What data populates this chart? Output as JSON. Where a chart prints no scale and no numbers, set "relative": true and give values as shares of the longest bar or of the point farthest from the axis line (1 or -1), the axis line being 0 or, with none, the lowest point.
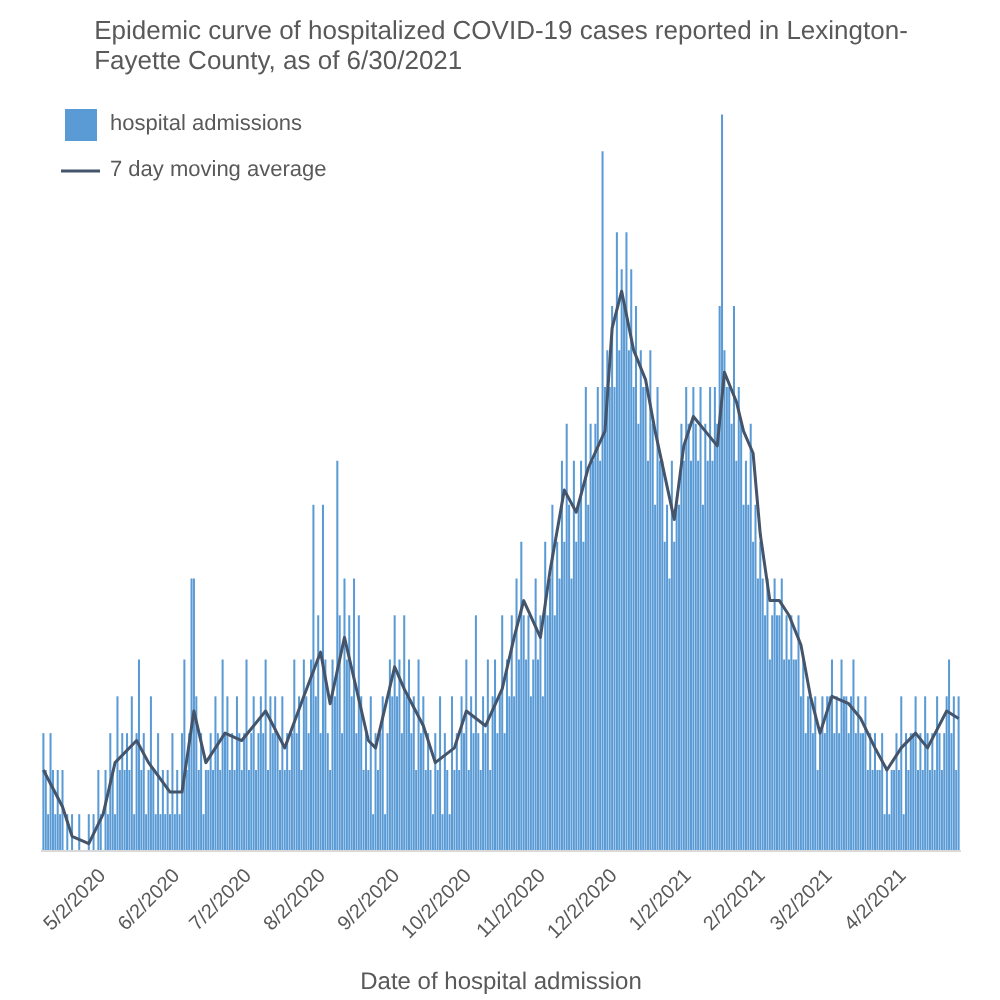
{
  "chart_data": {
    "type": "bar",
    "title": "Epidemic curve of hospitalized COVID-19 cases reported in Lexington-Fayette County, as of 6/30/2021",
    "xlabel": "Date of hospital admission",
    "relative": true,
    "legend": "top left",
    "xlim": [
      "2020-04-06",
      "2021-04-26"
    ],
    "xticks": [
      {
        "value": "2020-05-02",
        "label": "5/2/2020"
      },
      {
        "value": "2020-06-02",
        "label": "6/2/2020"
      },
      {
        "value": "2020-07-02",
        "label": "7/2/2020"
      },
      {
        "value": "2020-08-02",
        "label": "8/2/2020"
      },
      {
        "value": "2020-09-02",
        "label": "9/2/2020"
      },
      {
        "value": "2020-10-02",
        "label": "10/2/2020"
      },
      {
        "value": "2020-11-02",
        "label": "11/2/2020"
      },
      {
        "value": "2020-12-02",
        "label": "12/2/2020"
      },
      {
        "value": "2021-01-02",
        "label": "1/2/2021"
      },
      {
        "value": "2021-02-02",
        "label": "2/2/2021"
      },
      {
        "value": "2021-03-02",
        "label": "3/2/2021"
      },
      {
        "value": "2021-04-02",
        "label": "4/2/2021"
      }
    ],
    "series": [
      {
        "name": "hospital admissions",
        "color": "#5b9bd5",
        "x": [
          "2020-04-07",
          "2020-04-08",
          "2020-04-09",
          "2020-04-10",
          "2020-04-11",
          "2020-04-12",
          "2020-04-13",
          "2020-04-14",
          "2020-04-15",
          "2020-04-16",
          "2020-04-17",
          "2020-04-18",
          "2020-04-19",
          "2020-04-20",
          "2020-04-21",
          "2020-04-22",
          "2020-04-23",
          "2020-04-24",
          "2020-04-25",
          "2020-04-26",
          "2020-04-27",
          "2020-04-28",
          "2020-04-29",
          "2020-04-30",
          "2020-05-01",
          "2020-05-02",
          "2020-05-03",
          "2020-05-04",
          "2020-05-05",
          "2020-05-06",
          "2020-05-07",
          "2020-05-08",
          "2020-05-09",
          "2020-05-10",
          "2020-05-11",
          "2020-05-12",
          "2020-05-13",
          "2020-05-14",
          "2020-05-15",
          "2020-05-16",
          "2020-05-17",
          "2020-05-18",
          "2020-05-19",
          "2020-05-20",
          "2020-05-21",
          "2020-05-22",
          "2020-05-23",
          "2020-05-24",
          "2020-05-25",
          "2020-05-26",
          "2020-05-27",
          "2020-05-28",
          "2020-05-29",
          "2020-05-30",
          "2020-05-31",
          "2020-06-01",
          "2020-06-02",
          "2020-06-03",
          "2020-06-04",
          "2020-06-05",
          "2020-06-06",
          "2020-06-07",
          "2020-06-08",
          "2020-06-09",
          "2020-06-10",
          "2020-06-11",
          "2020-06-12",
          "2020-06-13",
          "2020-06-14",
          "2020-06-15",
          "2020-06-16",
          "2020-06-17",
          "2020-06-18",
          "2020-06-19",
          "2020-06-20",
          "2020-06-21",
          "2020-06-22",
          "2020-06-23",
          "2020-06-24",
          "2020-06-25",
          "2020-06-26",
          "2020-06-27",
          "2020-06-28",
          "2020-06-29",
          "2020-06-30",
          "2020-07-01",
          "2020-07-02",
          "2020-07-03",
          "2020-07-04",
          "2020-07-05",
          "2020-07-06",
          "2020-07-07",
          "2020-07-08",
          "2020-07-09",
          "2020-07-10",
          "2020-07-11",
          "2020-07-12",
          "2020-07-13",
          "2020-07-14",
          "2020-07-15",
          "2020-07-16",
          "2020-07-17",
          "2020-07-18",
          "2020-07-19",
          "2020-07-20",
          "2020-07-21",
          "2020-07-22",
          "2020-07-23",
          "2020-07-24",
          "2020-07-25",
          "2020-07-26",
          "2020-07-27",
          "2020-07-28",
          "2020-07-29",
          "2020-07-30",
          "2020-07-31",
          "2020-08-01",
          "2020-08-02",
          "2020-08-03",
          "2020-08-04",
          "2020-08-05",
          "2020-08-06",
          "2020-08-07",
          "2020-08-08",
          "2020-08-09",
          "2020-08-10",
          "2020-08-11",
          "2020-08-12",
          "2020-08-13",
          "2020-08-14",
          "2020-08-15",
          "2020-08-16",
          "2020-08-17",
          "2020-08-18",
          "2020-08-19",
          "2020-08-20",
          "2020-08-21",
          "2020-08-22",
          "2020-08-23",
          "2020-08-24",
          "2020-08-25",
          "2020-08-26",
          "2020-08-27",
          "2020-08-28",
          "2020-08-29",
          "2020-08-30",
          "2020-08-31",
          "2020-09-01",
          "2020-09-02",
          "2020-09-03",
          "2020-09-04",
          "2020-09-05",
          "2020-09-06",
          "2020-09-07",
          "2020-09-08",
          "2020-09-09",
          "2020-09-10",
          "2020-09-11",
          "2020-09-12",
          "2020-09-13",
          "2020-09-14",
          "2020-09-15",
          "2020-09-16",
          "2020-09-17",
          "2020-09-18",
          "2020-09-19",
          "2020-09-20",
          "2020-09-21",
          "2020-09-22",
          "2020-09-23",
          "2020-09-24",
          "2020-09-25",
          "2020-09-26",
          "2020-09-27",
          "2020-09-28",
          "2020-09-29",
          "2020-09-30",
          "2020-10-01",
          "2020-10-02",
          "2020-10-03",
          "2020-10-04",
          "2020-10-05",
          "2020-10-06",
          "2020-10-07",
          "2020-10-08",
          "2020-10-09",
          "2020-10-10",
          "2020-10-11",
          "2020-10-12",
          "2020-10-13",
          "2020-10-14",
          "2020-10-15",
          "2020-10-16",
          "2020-10-17",
          "2020-10-18",
          "2020-10-19",
          "2020-10-20",
          "2020-10-21",
          "2020-10-22",
          "2020-10-23",
          "2020-10-24",
          "2020-10-25",
          "2020-10-26",
          "2020-10-27",
          "2020-10-28",
          "2020-10-29",
          "2020-10-30",
          "2020-10-31",
          "2020-11-01",
          "2020-11-02",
          "2020-11-03",
          "2020-11-04",
          "2020-11-05",
          "2020-11-06",
          "2020-11-07",
          "2020-11-08",
          "2020-11-09",
          "2020-11-10",
          "2020-11-11",
          "2020-11-12",
          "2020-11-13",
          "2020-11-14",
          "2020-11-15",
          "2020-11-16",
          "2020-11-17",
          "2020-11-18",
          "2020-11-19",
          "2020-11-20",
          "2020-11-21",
          "2020-11-22",
          "2020-11-23",
          "2020-11-24",
          "2020-11-25",
          "2020-11-26",
          "2020-11-27",
          "2020-11-28",
          "2020-11-29",
          "2020-11-30",
          "2020-12-01",
          "2020-12-02",
          "2020-12-03",
          "2020-12-04",
          "2020-12-05",
          "2020-12-06",
          "2020-12-07",
          "2020-12-08",
          "2020-12-09",
          "2020-12-10",
          "2020-12-11",
          "2020-12-12",
          "2020-12-13",
          "2020-12-14",
          "2020-12-15",
          "2020-12-16",
          "2020-12-17",
          "2020-12-18",
          "2020-12-19",
          "2020-12-20",
          "2020-12-21",
          "2020-12-22",
          "2020-12-23",
          "2020-12-24",
          "2020-12-25",
          "2020-12-26",
          "2020-12-27",
          "2020-12-28",
          "2020-12-29",
          "2020-12-30",
          "2020-12-31",
          "2021-01-01",
          "2021-01-02",
          "2021-01-03",
          "2021-01-04",
          "2021-01-05",
          "2021-01-06",
          "2021-01-07",
          "2021-01-08",
          "2021-01-09",
          "2021-01-10",
          "2021-01-11",
          "2021-01-12",
          "2021-01-13",
          "2021-01-14",
          "2021-01-15",
          "2021-01-16",
          "2021-01-17",
          "2021-01-18",
          "2021-01-19",
          "2021-01-20",
          "2021-01-21",
          "2021-01-22",
          "2021-01-23",
          "2021-01-24",
          "2021-01-25",
          "2021-01-26",
          "2021-01-27",
          "2021-01-28",
          "2021-01-29",
          "2021-01-30",
          "2021-01-31",
          "2021-02-01",
          "2021-02-02",
          "2021-02-03",
          "2021-02-04",
          "2021-02-05",
          "2021-02-06",
          "2021-02-07",
          "2021-02-08",
          "2021-02-09",
          "2021-02-10",
          "2021-02-11",
          "2021-02-12",
          "2021-02-13",
          "2021-02-14",
          "2021-02-15",
          "2021-02-16",
          "2021-02-17",
          "2021-02-18",
          "2021-02-19",
          "2021-02-20",
          "2021-02-21",
          "2021-02-22",
          "2021-02-23",
          "2021-02-24",
          "2021-02-25",
          "2021-02-26",
          "2021-02-27",
          "2021-02-28",
          "2021-03-01",
          "2021-03-02",
          "2021-03-03",
          "2021-03-04",
          "2021-03-05",
          "2021-03-06",
          "2021-03-07",
          "2021-03-08",
          "2021-03-09",
          "2021-03-10",
          "2021-03-11",
          "2021-03-12",
          "2021-03-13",
          "2021-03-14",
          "2021-03-15",
          "2021-03-16",
          "2021-03-17",
          "2021-03-18",
          "2021-03-19",
          "2021-03-20",
          "2021-03-21",
          "2021-03-22",
          "2021-03-23",
          "2021-03-24",
          "2021-03-25",
          "2021-03-26",
          "2021-03-27",
          "2021-03-28",
          "2021-03-29",
          "2021-03-30",
          "2021-03-31",
          "2021-04-01",
          "2021-04-02",
          "2021-04-03",
          "2021-04-04",
          "2021-04-05",
          "2021-04-06",
          "2021-04-07",
          "2021-04-08",
          "2021-04-09",
          "2021-04-10",
          "2021-04-11",
          "2021-04-12",
          "2021-04-13",
          "2021-04-14",
          "2021-04-15",
          "2021-04-16",
          "2021-04-17",
          "2021-04-18",
          "2021-04-19",
          "2021-04-20",
          "2021-04-21",
          "2021-04-22",
          "2021-04-23",
          "2021-04-24",
          "2021-04-25"
        ],
        "values": [
          0.16,
          0.11,
          0.05,
          0.16,
          0.11,
          0.05,
          0.11,
          0.05,
          0.11,
          0,
          0.05,
          0,
          0.05,
          0,
          0,
          0.05,
          0,
          0,
          0,
          0.05,
          0,
          0.05,
          0,
          0.11,
          0.05,
          0,
          0.11,
          0.05,
          0.16,
          0.11,
          0.05,
          0.21,
          0.11,
          0.16,
          0.11,
          0.16,
          0.11,
          0.21,
          0.05,
          0.16,
          0.26,
          0.11,
          0.16,
          0.05,
          0.11,
          0.21,
          0.11,
          0.05,
          0.16,
          0.05,
          0.11,
          0.05,
          0.11,
          0.05,
          0.16,
          0.05,
          0.11,
          0.05,
          0.16,
          0.26,
          0.11,
          0.16,
          0.37,
          0.37,
          0.21,
          0.11,
          0.16,
          0.05,
          0.11,
          0.11,
          0.16,
          0.11,
          0.21,
          0.16,
          0.11,
          0.26,
          0.16,
          0.21,
          0.11,
          0.16,
          0.11,
          0.21,
          0.16,
          0.11,
          0.16,
          0.26,
          0.11,
          0.16,
          0.21,
          0.11,
          0.16,
          0.21,
          0.16,
          0.26,
          0.11,
          0.21,
          0.16,
          0.21,
          0.16,
          0.11,
          0.21,
          0.11,
          0.16,
          0.11,
          0.16,
          0.26,
          0.16,
          0.21,
          0.11,
          0.26,
          0.21,
          0.16,
          0.26,
          0.47,
          0.21,
          0.32,
          0.16,
          0.47,
          0.26,
          0.16,
          0.11,
          0.26,
          0.21,
          0.53,
          0.32,
          0.16,
          0.37,
          0.26,
          0.32,
          0.21,
          0.37,
          0.16,
          0.32,
          0.21,
          0.11,
          0.16,
          0.11,
          0.21,
          0.05,
          0.16,
          0.11,
          0.16,
          0.21,
          0.05,
          0.16,
          0.26,
          0.21,
          0.32,
          0.21,
          0.26,
          0.16,
          0.32,
          0.21,
          0.26,
          0.16,
          0.21,
          0.11,
          0.26,
          0.16,
          0.21,
          0.11,
          0.16,
          0.11,
          0.05,
          0.16,
          0.11,
          0.21,
          0.05,
          0.16,
          0.11,
          0.05,
          0.21,
          0.11,
          0.16,
          0.11,
          0.21,
          0.16,
          0.26,
          0.11,
          0.21,
          0.16,
          0.32,
          0.16,
          0.11,
          0.21,
          0.16,
          0.26,
          0.11,
          0.21,
          0.26,
          0.16,
          0.21,
          0.32,
          0.16,
          0.26,
          0.21,
          0.32,
          0.21,
          0.37,
          0.26,
          0.42,
          0.32,
          0.26,
          0.32,
          0.21,
          0.26,
          0.37,
          0.26,
          0.32,
          0.21,
          0.42,
          0.32,
          0.37,
          0.47,
          0.32,
          0.42,
          0.37,
          0.53,
          0.42,
          0.58,
          0.47,
          0.37,
          0.53,
          0.42,
          0.47,
          0.53,
          0.42,
          0.63,
          0.47,
          0.58,
          0.53,
          0.58,
          0.63,
          0.53,
          0.95,
          0.63,
          0.68,
          0.63,
          0.74,
          0.63,
          0.84,
          0.68,
          0.79,
          0.74,
          0.84,
          0.68,
          0.79,
          0.63,
          0.74,
          0.58,
          0.68,
          0.63,
          0.63,
          0.53,
          0.68,
          0.58,
          0.47,
          0.63,
          0.53,
          0.53,
          0.42,
          0.47,
          0.37,
          0.53,
          0.42,
          0.47,
          0.47,
          0.58,
          0.53,
          0.63,
          0.58,
          0.53,
          0.63,
          0.58,
          0.53,
          0.63,
          0.47,
          0.58,
          0.53,
          0.63,
          0.53,
          0.63,
          0.58,
          0.74,
          1,
          0.68,
          0.63,
          0.63,
          0.58,
          0.74,
          0.53,
          0.63,
          0.58,
          0.47,
          0.53,
          0.47,
          0.58,
          0.42,
          0.47,
          0.37,
          0.42,
          0.37,
          0.32,
          0.37,
          0.26,
          0.32,
          0.37,
          0.32,
          0.32,
          0.37,
          0.26,
          0.32,
          0.26,
          0.32,
          0.26,
          0.26,
          0.32,
          0.21,
          0.26,
          0.16,
          0.21,
          0.21,
          0.16,
          0.21,
          0.11,
          0.16,
          0.21,
          0.16,
          0.21,
          0.21,
          0.26,
          0.16,
          0.21,
          0.16,
          0.26,
          0.21,
          0.21,
          0.16,
          0.21,
          0.26,
          0.16,
          0.21,
          0.16,
          0.16,
          0.21,
          0.11,
          0.16,
          0.11,
          0.16,
          0.11,
          0.11,
          0.16,
          0.05,
          0.11,
          0.05,
          0.11,
          0.11,
          0.16,
          0.11,
          0.21,
          0.05,
          0.16,
          0.11,
          0.16,
          0.16,
          0.21,
          0.11,
          0.16,
          0.11,
          0.21,
          0.16,
          0.11,
          0.16,
          0.11,
          0.21,
          0.16,
          0.11,
          0.16,
          0.21,
          0.26,
          0.16,
          0.21,
          0.11,
          0.21
        ]
      },
      {
        "name": "7 day moving average",
        "type": "line",
        "color": "#44546a",
        "x": [
          "2020-04-07",
          "2020-04-15",
          "2020-04-19",
          "2020-04-26",
          "2020-05-02",
          "2020-05-07",
          "2020-05-16",
          "2020-05-21",
          "2020-05-30",
          "2020-06-04",
          "2020-06-09",
          "2020-06-14",
          "2020-06-22",
          "2020-06-29",
          "2020-07-09",
          "2020-07-17",
          "2020-07-25",
          "2020-08-01",
          "2020-08-05",
          "2020-08-11",
          "2020-08-21",
          "2020-08-24",
          "2020-09-01",
          "2020-09-05",
          "2020-09-13",
          "2020-09-18",
          "2020-09-26",
          "2020-10-01",
          "2020-10-09",
          "2020-10-16",
          "2020-10-21",
          "2020-10-25",
          "2020-11-01",
          "2020-11-05",
          "2020-11-11",
          "2020-11-16",
          "2020-11-21",
          "2020-11-28",
          "2020-12-01",
          "2020-12-05",
          "2020-12-10",
          "2020-12-15",
          "2020-12-19",
          "2020-12-23",
          "2020-12-27",
          "2020-12-31",
          "2021-01-04",
          "2021-01-09",
          "2021-01-14",
          "2021-01-17",
          "2021-01-22",
          "2021-01-25",
          "2021-01-29",
          "2021-02-01",
          "2021-02-05",
          "2021-02-09",
          "2021-02-13",
          "2021-02-18",
          "2021-02-22",
          "2021-02-26",
          "2021-03-03",
          "2021-03-10",
          "2021-03-15",
          "2021-03-21",
          "2021-03-26",
          "2021-04-01",
          "2021-04-07",
          "2021-04-12",
          "2021-04-20",
          "2021-04-25"
        ],
        "values": [
          0.11,
          0.06,
          0.02,
          0.01,
          0.05,
          0.12,
          0.15,
          0.12,
          0.08,
          0.08,
          0.19,
          0.12,
          0.16,
          0.15,
          0.19,
          0.14,
          0.21,
          0.27,
          0.2,
          0.29,
          0.15,
          0.14,
          0.25,
          0.22,
          0.17,
          0.12,
          0.14,
          0.19,
          0.17,
          0.22,
          0.29,
          0.34,
          0.29,
          0.38,
          0.49,
          0.46,
          0.52,
          0.57,
          0.71,
          0.76,
          0.68,
          0.64,
          0.57,
          0.51,
          0.45,
          0.55,
          0.59,
          0.57,
          0.55,
          0.65,
          0.61,
          0.57,
          0.54,
          0.43,
          0.34,
          0.34,
          0.32,
          0.28,
          0.21,
          0.16,
          0.21,
          0.2,
          0.18,
          0.14,
          0.11,
          0.14,
          0.16,
          0.14,
          0.19,
          0.18
        ]
      }
    ]
  }
}
